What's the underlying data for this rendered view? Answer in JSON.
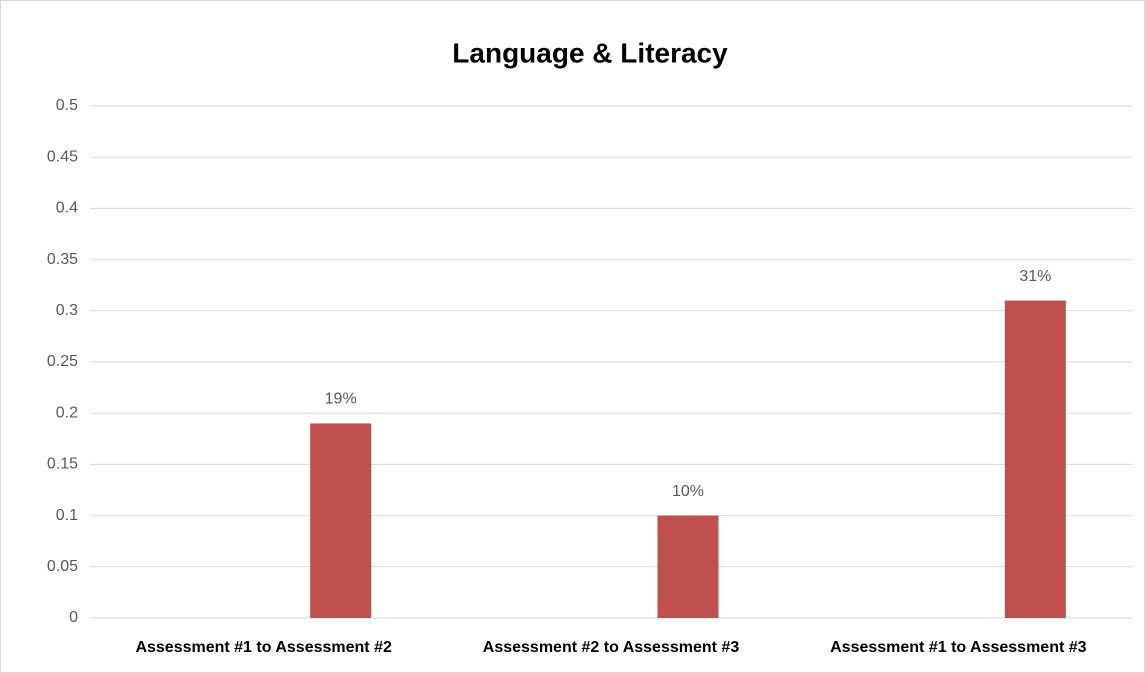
{
  "chart_data": {
    "type": "bar",
    "title": "Language & Literacy",
    "categories": [
      "Assessment #1 to Assessment #2",
      "Assessment #2 to Assessment #3",
      "Assessment #1 to Assessment #3"
    ],
    "values": [
      0.19,
      0.1,
      0.31
    ],
    "value_labels": [
      "19%",
      "10%",
      "31%"
    ],
    "color": "#c0504d",
    "ylim": [
      0,
      0.5
    ],
    "yticks": [
      0,
      0.05,
      0.1,
      0.15,
      0.2,
      0.25,
      0.3,
      0.35,
      0.4,
      0.45,
      0.5
    ],
    "grid": true
  }
}
